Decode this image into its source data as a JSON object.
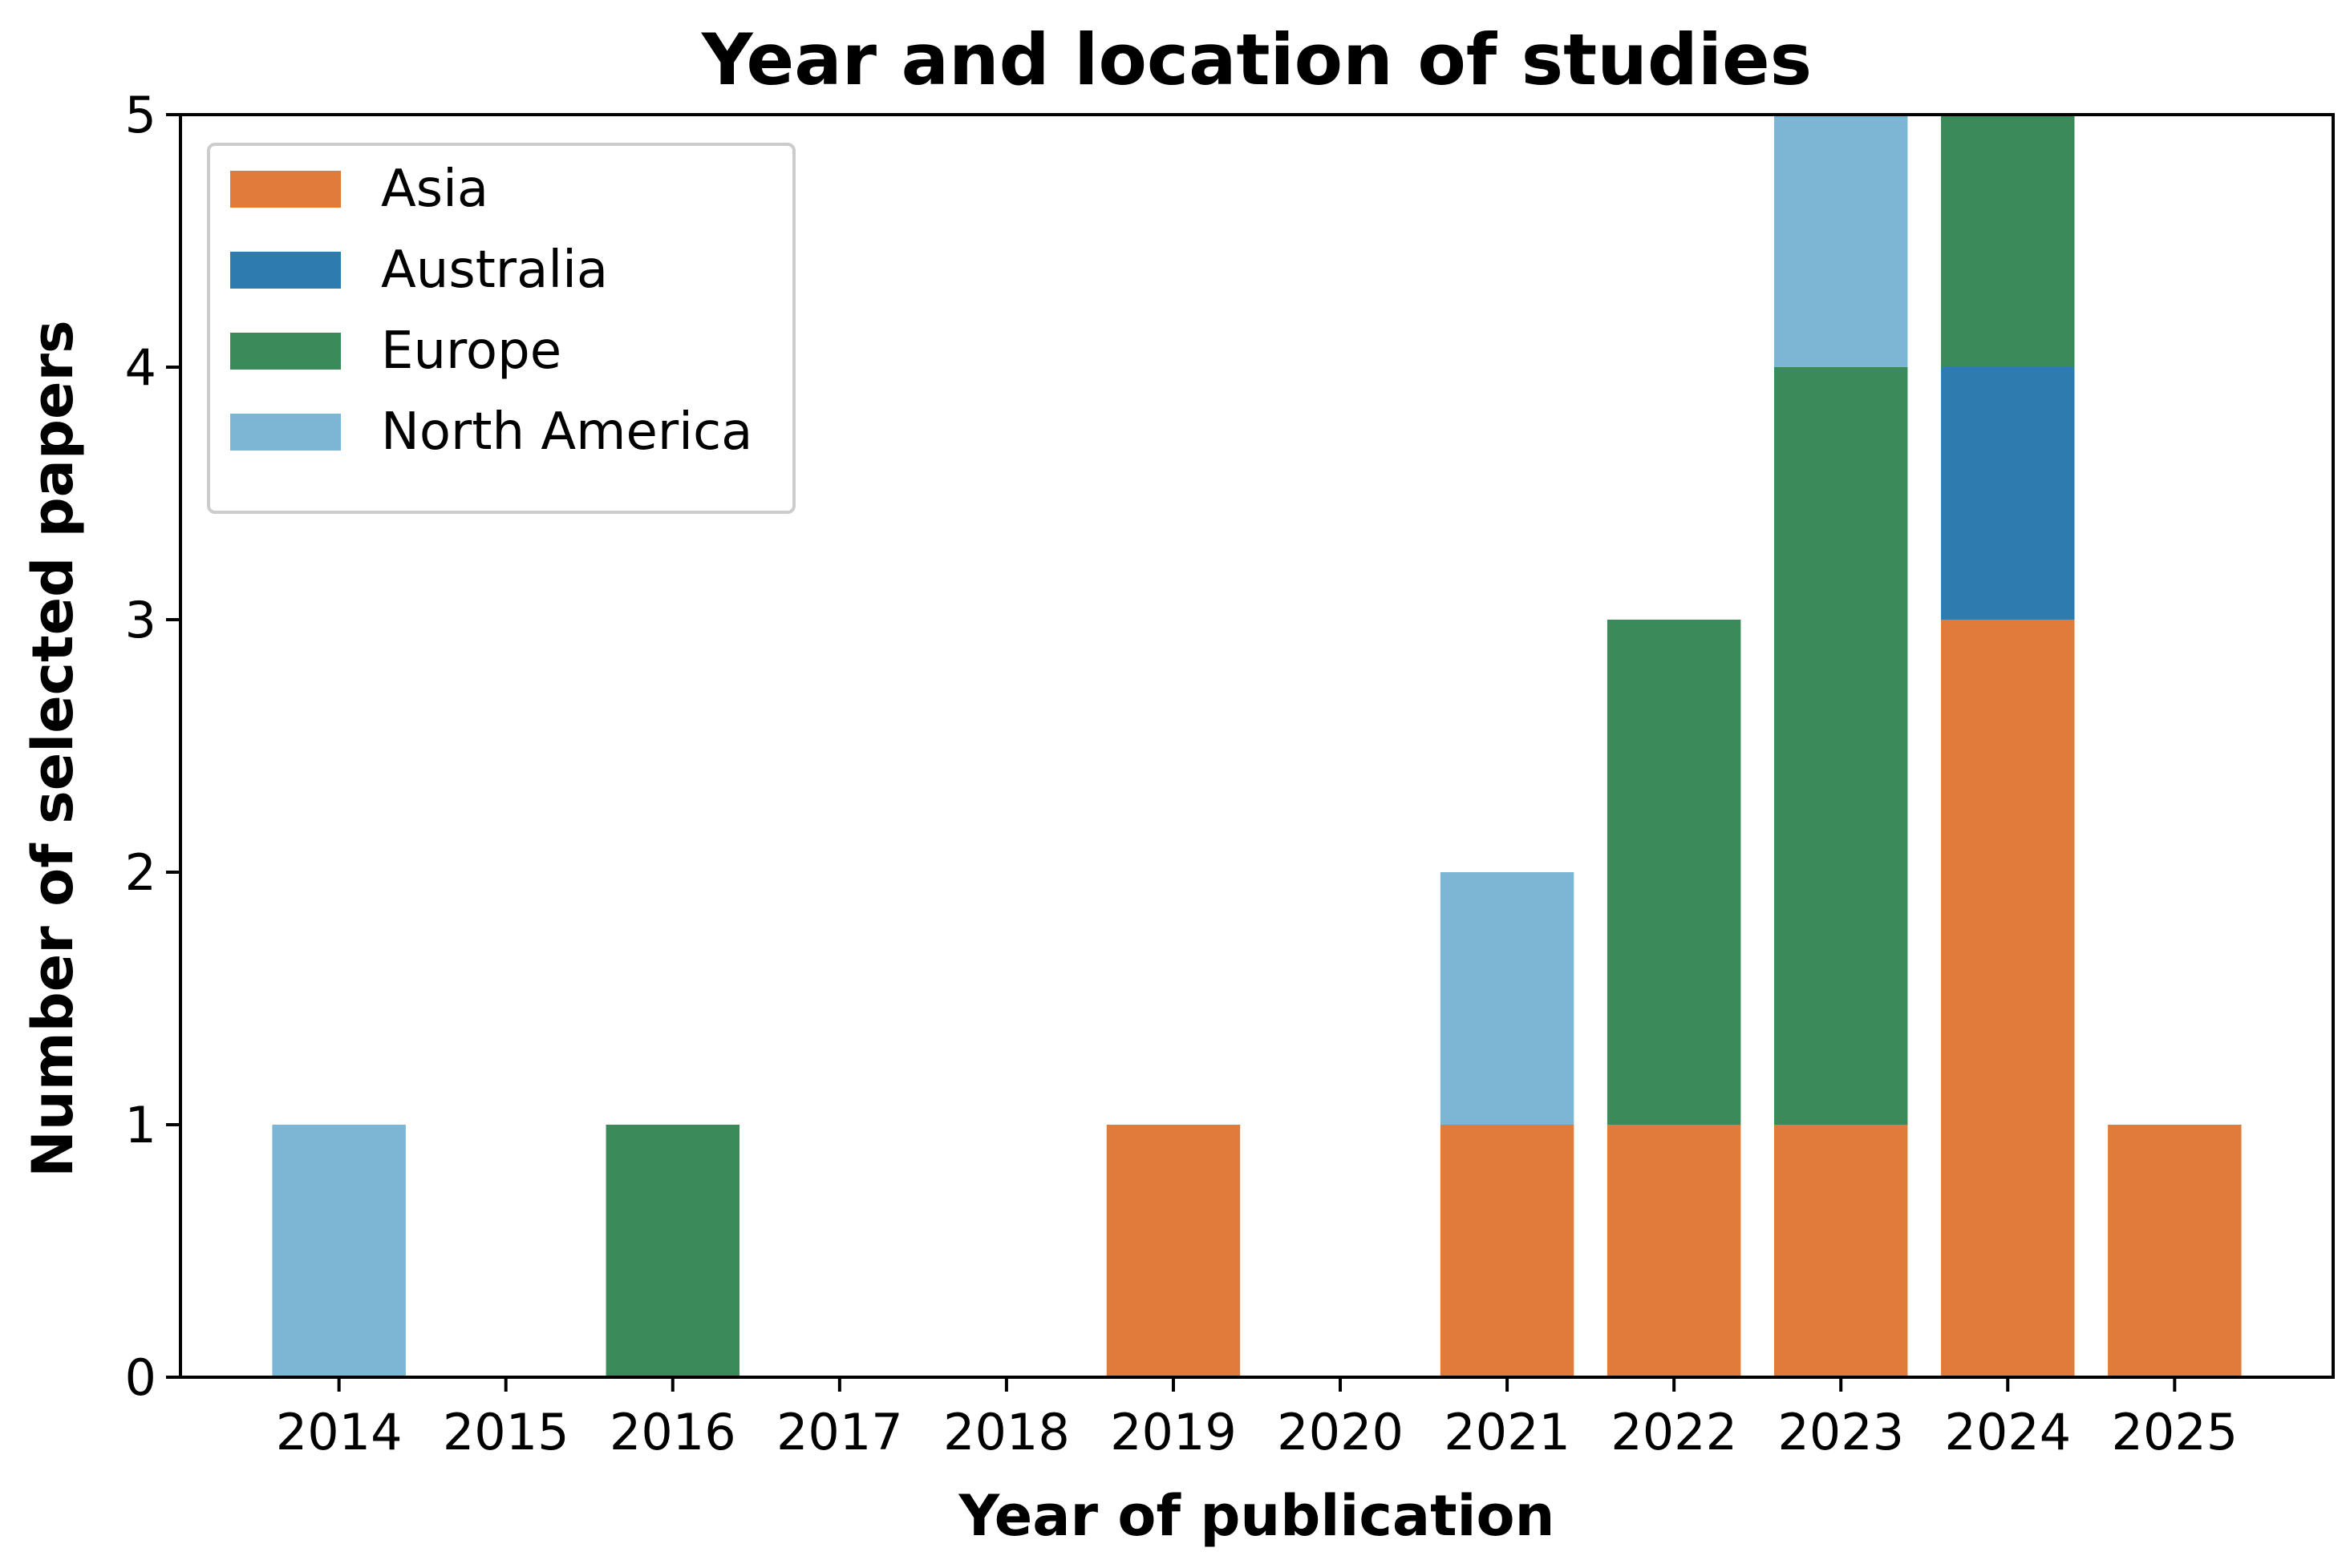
{
  "chart_data": {
    "type": "bar",
    "stacked": true,
    "title": "Year and location of studies",
    "xlabel": "Year of publication",
    "ylabel": "Number of selected papers",
    "categories": [
      "2014",
      "2015",
      "2016",
      "2017",
      "2018",
      "2019",
      "2020",
      "2021",
      "2022",
      "2023",
      "2024",
      "2025"
    ],
    "ylim": [
      0,
      5
    ],
    "yticks": [
      0,
      1,
      2,
      3,
      4,
      5
    ],
    "grid": false,
    "legend_position": "top-left",
    "series": [
      {
        "name": "Asia",
        "color": "#e07b39",
        "values": [
          0,
          0,
          0,
          0,
          0,
          1,
          0,
          1,
          1,
          1,
          3,
          1
        ]
      },
      {
        "name": "Australia",
        "color": "#2e7bb0",
        "values": [
          0,
          0,
          0,
          0,
          0,
          0,
          0,
          0,
          0,
          0,
          1,
          0
        ]
      },
      {
        "name": "Europe",
        "color": "#3a8a5a",
        "values": [
          0,
          0,
          1,
          0,
          0,
          0,
          0,
          0,
          2,
          3,
          1,
          0
        ]
      },
      {
        "name": "North America",
        "color": "#7bb7d4",
        "values": [
          1,
          0,
          0,
          0,
          0,
          0,
          0,
          1,
          0,
          1,
          0,
          0
        ]
      }
    ]
  }
}
